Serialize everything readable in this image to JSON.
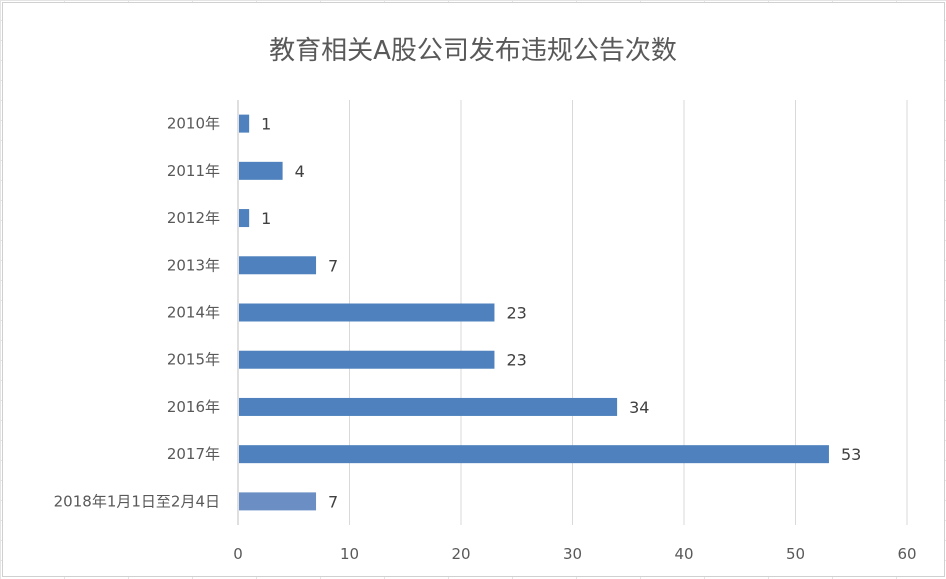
{
  "chart_data": {
    "type": "bar",
    "orientation": "horizontal",
    "title": "教育相关A股公司发布违规公告次数",
    "categories": [
      "2010年",
      "2011年",
      "2012年",
      "2013年",
      "2014年",
      "2015年",
      "2016年",
      "2017年",
      "2018年1月1日至2月4日"
    ],
    "values": [
      1,
      4,
      1,
      7,
      23,
      23,
      34,
      53,
      7
    ],
    "xlim": [
      0,
      60
    ],
    "xticks": [
      "0",
      "10",
      "20",
      "30",
      "40",
      "50",
      "60"
    ],
    "grid": "vertical",
    "legend": "none",
    "bar_color": "#4e81bd",
    "last_bar_color": "#6b8fc4",
    "data_labels": true
  }
}
